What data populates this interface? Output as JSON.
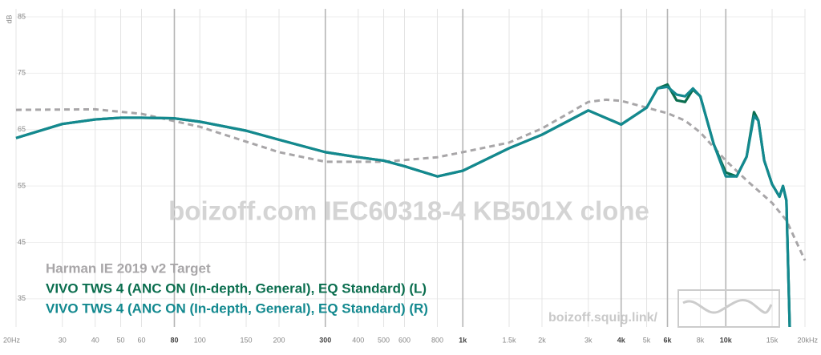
{
  "chart_data": {
    "type": "line",
    "title": "boizoff.com IEC60318-4 KB501X clone",
    "watermark": "boizoff.squig.link/",
    "y_label": "dB",
    "log_x": true,
    "grid": true,
    "xlim": [
      20,
      20000
    ],
    "ylim": [
      30,
      85
    ],
    "yticks": [
      35,
      45,
      55,
      65,
      75,
      85
    ],
    "xticks": [
      {
        "value": 20,
        "label": "20Hz"
      },
      30,
      40,
      50,
      60,
      80,
      100,
      150,
      200,
      300,
      400,
      500,
      600,
      800,
      {
        "value": 1000,
        "label": "1k"
      },
      {
        "value": 1500,
        "label": "1.5k"
      },
      {
        "value": 2000,
        "label": "2k"
      },
      {
        "value": 3000,
        "label": "3k"
      },
      {
        "value": 4000,
        "label": "4k"
      },
      {
        "value": 5000,
        "label": "5k"
      },
      {
        "value": 6000,
        "label": "6k"
      },
      {
        "value": 8000,
        "label": "8k"
      },
      {
        "value": 10000,
        "label": "10k"
      },
      {
        "value": 15000,
        "label": "15k"
      },
      {
        "value": 20000,
        "label": "20kHz"
      }
    ],
    "emphasized_xticks": [
      80,
      300,
      1000,
      4000,
      6000,
      10000
    ],
    "series": [
      {
        "name": "Harman IE 2019 v2 Target",
        "color": "#a8a6a8",
        "dashed": true,
        "x": [
          20,
          40,
          60,
          100,
          200,
          300,
          500,
          800,
          1000,
          1500,
          2000,
          3000,
          3500,
          4000,
          5000,
          6000,
          7000,
          8000,
          10000,
          12000,
          15000,
          17000,
          20000
        ],
        "values": [
          68.5,
          68.6,
          67.8,
          65.5,
          61,
          59.3,
          59.3,
          60.1,
          61,
          62.7,
          65.2,
          69.9,
          70.3,
          70.1,
          68.9,
          67.9,
          66.6,
          64.5,
          59.5,
          56,
          52,
          48.9,
          41.8
        ]
      },
      {
        "name": "VIVO TWS 4 (ANC ON (In-depth, General), EQ Standard) (L)",
        "color": "#0b6e4f",
        "dashed": false,
        "x": [
          20,
          30,
          40,
          50,
          60,
          80,
          100,
          150,
          200,
          300,
          400,
          500,
          600,
          800,
          1000,
          1500,
          2000,
          3000,
          4000,
          5000,
          5500,
          6000,
          6500,
          7000,
          7500,
          8000,
          9000,
          10000,
          11000,
          12000,
          12800,
          13300,
          14000,
          15000,
          16000,
          16500,
          17000,
          17500
        ],
        "values": [
          63.5,
          66,
          66.8,
          67.1,
          67.1,
          67,
          66.4,
          64.8,
          63.2,
          61,
          60.1,
          59.5,
          58.5,
          56.7,
          57.7,
          61.7,
          64.1,
          68.4,
          65.9,
          68.9,
          72.3,
          73,
          70.2,
          69.9,
          72.1,
          70.9,
          62.4,
          57.4,
          56.7,
          60.2,
          68.1,
          66.6,
          59.5,
          55.3,
          53.1,
          55,
          52.4,
          30
        ]
      },
      {
        "name": "VIVO TWS 4 (ANC ON (In-depth, General), EQ Standard) (R)",
        "color": "#13898f",
        "dashed": false,
        "x": [
          20,
          30,
          40,
          50,
          60,
          80,
          100,
          150,
          200,
          300,
          400,
          500,
          600,
          800,
          1000,
          1500,
          2000,
          3000,
          4000,
          5000,
          5500,
          6000,
          6500,
          7000,
          7500,
          8000,
          9000,
          10000,
          11000,
          12000,
          12800,
          13300,
          14000,
          15000,
          16000,
          16500,
          17000,
          17500
        ],
        "values": [
          63.5,
          66,
          66.8,
          67.1,
          67.1,
          67,
          66.4,
          64.8,
          63.2,
          61,
          60.1,
          59.5,
          58.5,
          56.7,
          57.7,
          61.7,
          64.1,
          68.4,
          65.9,
          68.9,
          72.3,
          72.6,
          71.2,
          70.9,
          72.3,
          70.9,
          62.4,
          56.7,
          56.7,
          60.2,
          67.4,
          66.6,
          59.5,
          55.3,
          53.1,
          55,
          52.4,
          30
        ]
      }
    ]
  }
}
